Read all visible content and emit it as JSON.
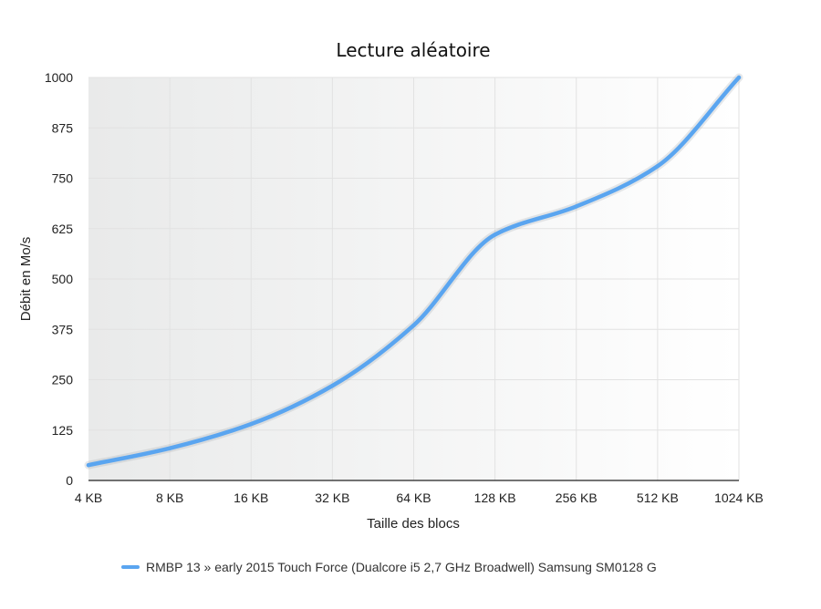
{
  "chart_data": {
    "type": "line",
    "title": "Lecture aléatoire",
    "xlabel": "Taille des blocs",
    "ylabel": "Débit en Mo/s",
    "categories": [
      "4 KB",
      "8 KB",
      "16 KB",
      "32 KB",
      "64 KB",
      "128 KB",
      "256 KB",
      "512 KB",
      "1024 KB"
    ],
    "y_ticks": [
      0,
      125,
      250,
      375,
      500,
      625,
      750,
      875,
      1000
    ],
    "ylim": [
      0,
      1000
    ],
    "grid": true,
    "legend_position": "bottom",
    "series": [
      {
        "name": "RMBP 13 » early 2015 Touch Force (Dualcore i5 2,7 GHz Broadwell) Samsung SM0128 G",
        "values": [
          38,
          80,
          140,
          235,
          385,
          610,
          680,
          780,
          1000
        ],
        "color": "#5aa5f0"
      }
    ]
  }
}
